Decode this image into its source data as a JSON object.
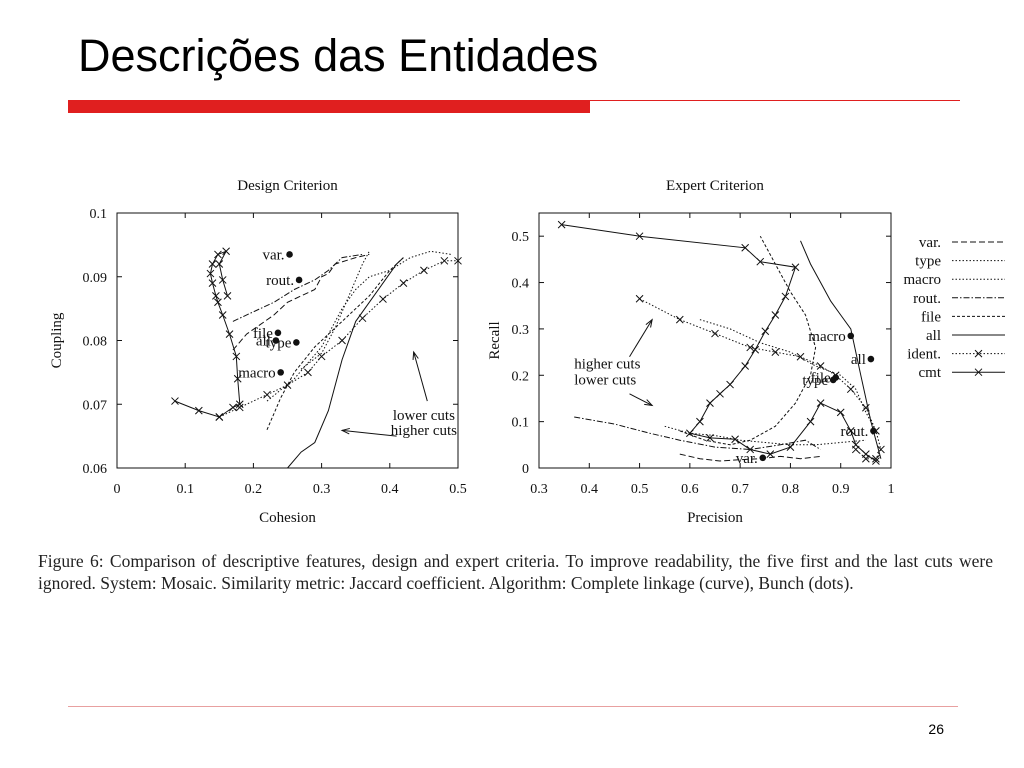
{
  "slide": {
    "title": "Descrições das Entidades",
    "page_number": "26",
    "caption": "Figure 6: Comparison of descriptive features, design and expert criteria. To improve readability, the five first and the last cuts were ignored. System: Mosaic. Similarity metric: Jaccard coefficient. Algorithm: Complete linkage (curve), Bunch (dots).",
    "colors": {
      "accent": "#e01f1f",
      "line": "#e8a0a0",
      "ink": "#111111"
    }
  },
  "chart_data": [
    {
      "type": "line",
      "title": "Design Criterion",
      "xlabel": "Cohesion",
      "ylabel": "Coupling",
      "xlim": [
        0,
        0.5
      ],
      "ylim": [
        0.06,
        0.1
      ],
      "xticks": [
        "0",
        "0.1",
        "0.2",
        "0.3",
        "0.4",
        "0.5"
      ],
      "yticks": [
        "0.06",
        "0.07",
        "0.08",
        "0.09",
        "0.1"
      ],
      "annotations": [
        {
          "text": "lower cuts",
          "x": 0.45,
          "y": 0.0675
        },
        {
          "text": "higher cuts",
          "x": 0.45,
          "y": 0.0652
        }
      ],
      "arrows": [
        {
          "from": [
            0.455,
            0.0705
          ],
          "to": [
            0.435,
            0.0782
          ]
        },
        {
          "from": [
            0.41,
            0.065
          ],
          "to": [
            0.33,
            0.0659
          ]
        }
      ],
      "series": [
        {
          "name": "var.",
          "style": "dashed",
          "points": [
            [
              0.17,
              0.0785
            ],
            [
              0.19,
              0.081
            ],
            [
              0.23,
              0.084
            ],
            [
              0.25,
              0.086
            ],
            [
              0.27,
              0.087
            ],
            [
              0.29,
              0.088
            ],
            [
              0.3,
              0.09
            ],
            [
              0.31,
              0.0905
            ],
            [
              0.32,
              0.092
            ],
            [
              0.35,
              0.093
            ],
            [
              0.37,
              0.0935
            ]
          ]
        },
        {
          "name": "type",
          "style": "dotted",
          "points": [
            [
              0.22,
              0.0705
            ],
            [
              0.26,
              0.074
            ],
            [
              0.3,
              0.079
            ],
            [
              0.33,
              0.085
            ],
            [
              0.35,
              0.088
            ],
            [
              0.37,
              0.09
            ],
            [
              0.4,
              0.091
            ],
            [
              0.43,
              0.093
            ],
            [
              0.46,
              0.094
            ],
            [
              0.49,
              0.0935
            ]
          ]
        },
        {
          "name": "macro",
          "style": "dotted",
          "points": [
            [
              0.27,
              0.0755
            ],
            [
              0.3,
              0.078
            ],
            [
              0.32,
              0.082
            ],
            [
              0.34,
              0.087
            ],
            [
              0.36,
              0.092
            ],
            [
              0.37,
              0.094
            ]
          ]
        },
        {
          "name": "rout.",
          "style": "dashdot",
          "points": [
            [
              0.17,
              0.083
            ],
            [
              0.2,
              0.0845
            ],
            [
              0.23,
              0.086
            ],
            [
              0.26,
              0.088
            ],
            [
              0.29,
              0.0895
            ],
            [
              0.31,
              0.091
            ],
            [
              0.33,
              0.093
            ],
            [
              0.36,
              0.0935
            ]
          ]
        },
        {
          "name": "file",
          "style": "dashed-short",
          "points": [
            [
              0.22,
              0.066
            ],
            [
              0.24,
              0.071
            ],
            [
              0.26,
              0.075
            ],
            [
              0.29,
              0.079
            ],
            [
              0.33,
              0.083
            ],
            [
              0.37,
              0.087
            ],
            [
              0.4,
              0.091
            ],
            [
              0.42,
              0.093
            ]
          ]
        },
        {
          "name": "all",
          "style": "solid",
          "points": [
            [
              0.25,
              0.06
            ],
            [
              0.27,
              0.0625
            ],
            [
              0.29,
              0.064
            ],
            [
              0.31,
              0.069
            ],
            [
              0.33,
              0.077
            ],
            [
              0.35,
              0.083
            ],
            [
              0.37,
              0.086
            ],
            [
              0.39,
              0.089
            ],
            [
              0.41,
              0.092
            ],
            [
              0.42,
              0.093
            ]
          ]
        },
        {
          "name": "ident.",
          "style": "dotted-x",
          "points": [
            [
              0.15,
              0.068
            ],
            [
              0.18,
              0.0695
            ],
            [
              0.22,
              0.0715
            ],
            [
              0.25,
              0.073
            ],
            [
              0.28,
              0.075
            ],
            [
              0.3,
              0.0775
            ],
            [
              0.33,
              0.08
            ],
            [
              0.36,
              0.0835
            ],
            [
              0.39,
              0.0865
            ],
            [
              0.42,
              0.089
            ],
            [
              0.45,
              0.091
            ],
            [
              0.48,
              0.0925
            ],
            [
              0.5,
              0.0925
            ]
          ]
        },
        {
          "name": "cmt",
          "style": "solid-x",
          "points": [
            [
              0.085,
              0.0705
            ],
            [
              0.12,
              0.069
            ],
            [
              0.15,
              0.068
            ],
            [
              0.17,
              0.0695
            ],
            [
              0.18,
              0.07
            ],
            [
              0.177,
              0.074
            ],
            [
              0.175,
              0.0775
            ],
            [
              0.165,
              0.081
            ],
            [
              0.155,
              0.084
            ],
            [
              0.148,
              0.086
            ],
            [
              0.145,
              0.087
            ],
            [
              0.14,
              0.089
            ],
            [
              0.137,
              0.0905
            ],
            [
              0.14,
              0.092
            ],
            [
              0.148,
              0.0935
            ],
            [
              0.16,
              0.094
            ],
            [
              0.15,
              0.092
            ],
            [
              0.155,
              0.0895
            ],
            [
              0.162,
              0.087
            ]
          ]
        }
      ],
      "points": [
        {
          "label": "var.",
          "x": 0.253,
          "y": 0.0935
        },
        {
          "label": "rout.",
          "x": 0.267,
          "y": 0.0895
        },
        {
          "label": "file",
          "x": 0.236,
          "y": 0.0812
        },
        {
          "label": "type",
          "x": 0.263,
          "y": 0.0797
        },
        {
          "label": "all",
          "x": 0.233,
          "y": 0.08
        },
        {
          "label": "macro",
          "x": 0.24,
          "y": 0.075
        }
      ]
    },
    {
      "type": "line",
      "title": "Expert Criterion",
      "xlabel": "Precision",
      "ylabel": "Recall",
      "xlim": [
        0.3,
        1
      ],
      "ylim": [
        0,
        0.55
      ],
      "xticks": [
        "0.3",
        "0.4",
        "0.5",
        "0.6",
        "0.7",
        "0.8",
        "0.9",
        "1"
      ],
      "yticks": [
        "0",
        "0.1",
        "0.2",
        "0.3",
        "0.4",
        "0.5"
      ],
      "legend": [
        "var.",
        "type",
        "macro",
        "rout.",
        "file",
        "all",
        "ident.",
        "cmt"
      ],
      "annotations": [
        {
          "text": "higher cuts",
          "x": 0.37,
          "y": 0.215
        },
        {
          "text": "lower cuts",
          "x": 0.37,
          "y": 0.18
        }
      ],
      "arrows": [
        {
          "from": [
            0.48,
            0.24
          ],
          "to": [
            0.525,
            0.32
          ]
        },
        {
          "from": [
            0.48,
            0.16
          ],
          "to": [
            0.525,
            0.135
          ]
        }
      ],
      "series": [
        {
          "name": "var.",
          "style": "dashed",
          "points": [
            [
              0.58,
              0.03
            ],
            [
              0.62,
              0.02
            ],
            [
              0.66,
              0.015
            ],
            [
              0.7,
              0.018
            ],
            [
              0.74,
              0.02
            ],
            [
              0.78,
              0.025
            ],
            [
              0.82,
              0.02
            ],
            [
              0.86,
              0.025
            ]
          ]
        },
        {
          "name": "type",
          "style": "dotted",
          "points": [
            [
              0.55,
              0.09
            ],
            [
              0.6,
              0.075
            ],
            [
              0.65,
              0.07
            ],
            [
              0.7,
              0.06
            ],
            [
              0.75,
              0.055
            ],
            [
              0.8,
              0.05
            ],
            [
              0.85,
              0.05
            ],
            [
              0.9,
              0.055
            ],
            [
              0.95,
              0.06
            ]
          ]
        },
        {
          "name": "macro",
          "style": "dotted",
          "points": [
            [
              0.62,
              0.32
            ],
            [
              0.68,
              0.3
            ],
            [
              0.74,
              0.27
            ],
            [
              0.8,
              0.25
            ],
            [
              0.85,
              0.22
            ],
            [
              0.9,
              0.2
            ],
            [
              0.93,
              0.17
            ],
            [
              0.95,
              0.12
            ],
            [
              0.97,
              0.08
            ]
          ]
        },
        {
          "name": "rout.",
          "style": "dashdot",
          "points": [
            [
              0.37,
              0.11
            ],
            [
              0.45,
              0.095
            ],
            [
              0.52,
              0.075
            ],
            [
              0.58,
              0.06
            ],
            [
              0.65,
              0.045
            ],
            [
              0.72,
              0.04
            ],
            [
              0.78,
              0.05
            ],
            [
              0.83,
              0.06
            ],
            [
              0.86,
              0.04
            ]
          ]
        },
        {
          "name": "file",
          "style": "dashed-short",
          "points": [
            [
              0.58,
              0.08
            ],
            [
              0.63,
              0.06
            ],
            [
              0.68,
              0.05
            ],
            [
              0.72,
              0.06
            ],
            [
              0.77,
              0.09
            ],
            [
              0.81,
              0.14
            ],
            [
              0.84,
              0.2
            ],
            [
              0.85,
              0.26
            ],
            [
              0.83,
              0.33
            ],
            [
              0.8,
              0.38
            ],
            [
              0.77,
              0.44
            ],
            [
              0.74,
              0.5
            ]
          ]
        },
        {
          "name": "all",
          "style": "solid",
          "points": [
            [
              0.82,
              0.49
            ],
            [
              0.84,
              0.44
            ],
            [
              0.86,
              0.4
            ],
            [
              0.88,
              0.36
            ],
            [
              0.9,
              0.33
            ],
            [
              0.92,
              0.3
            ],
            [
              0.93,
              0.25
            ],
            [
              0.94,
              0.2
            ],
            [
              0.95,
              0.15
            ],
            [
              0.96,
              0.1
            ],
            [
              0.97,
              0.06
            ],
            [
              0.98,
              0.02
            ]
          ]
        },
        {
          "name": "ident.",
          "style": "dotted-x",
          "points": [
            [
              0.5,
              0.365
            ],
            [
              0.58,
              0.32
            ],
            [
              0.65,
              0.29
            ],
            [
              0.72,
              0.26
            ],
            [
              0.77,
              0.25
            ],
            [
              0.82,
              0.24
            ],
            [
              0.86,
              0.22
            ],
            [
              0.89,
              0.2
            ],
            [
              0.92,
              0.17
            ],
            [
              0.95,
              0.13
            ],
            [
              0.97,
              0.08
            ],
            [
              0.98,
              0.04
            ],
            [
              0.97,
              0.02
            ],
            [
              0.95,
              0.02
            ],
            [
              0.93,
              0.04
            ]
          ]
        },
        {
          "name": "cmt",
          "style": "solid-x",
          "points": [
            [
              0.345,
              0.525
            ],
            [
              0.5,
              0.5
            ],
            [
              0.71,
              0.475
            ],
            [
              0.74,
              0.445
            ],
            [
              0.81,
              0.433
            ],
            [
              0.79,
              0.37
            ],
            [
              0.77,
              0.33
            ],
            [
              0.75,
              0.295
            ],
            [
              0.73,
              0.255
            ],
            [
              0.71,
              0.22
            ],
            [
              0.68,
              0.18
            ],
            [
              0.66,
              0.16
            ],
            [
              0.64,
              0.14
            ],
            [
              0.62,
              0.1
            ],
            [
              0.6,
              0.075
            ],
            [
              0.64,
              0.065
            ],
            [
              0.69,
              0.062
            ],
            [
              0.72,
              0.04
            ],
            [
              0.76,
              0.03
            ],
            [
              0.8,
              0.045
            ],
            [
              0.84,
              0.1
            ],
            [
              0.86,
              0.14
            ],
            [
              0.9,
              0.12
            ],
            [
              0.92,
              0.08
            ],
            [
              0.93,
              0.05
            ],
            [
              0.95,
              0.03
            ],
            [
              0.97,
              0.015
            ]
          ]
        }
      ],
      "points": [
        {
          "label": "macro",
          "x": 0.92,
          "y": 0.285
        },
        {
          "label": "file",
          "x": 0.89,
          "y": 0.195
        },
        {
          "label": "all",
          "x": 0.96,
          "y": 0.235
        },
        {
          "label": "type",
          "x": 0.885,
          "y": 0.19
        },
        {
          "label": "rout.",
          "x": 0.965,
          "y": 0.08
        },
        {
          "label": "var.",
          "x": 0.745,
          "y": 0.022
        }
      ]
    }
  ]
}
